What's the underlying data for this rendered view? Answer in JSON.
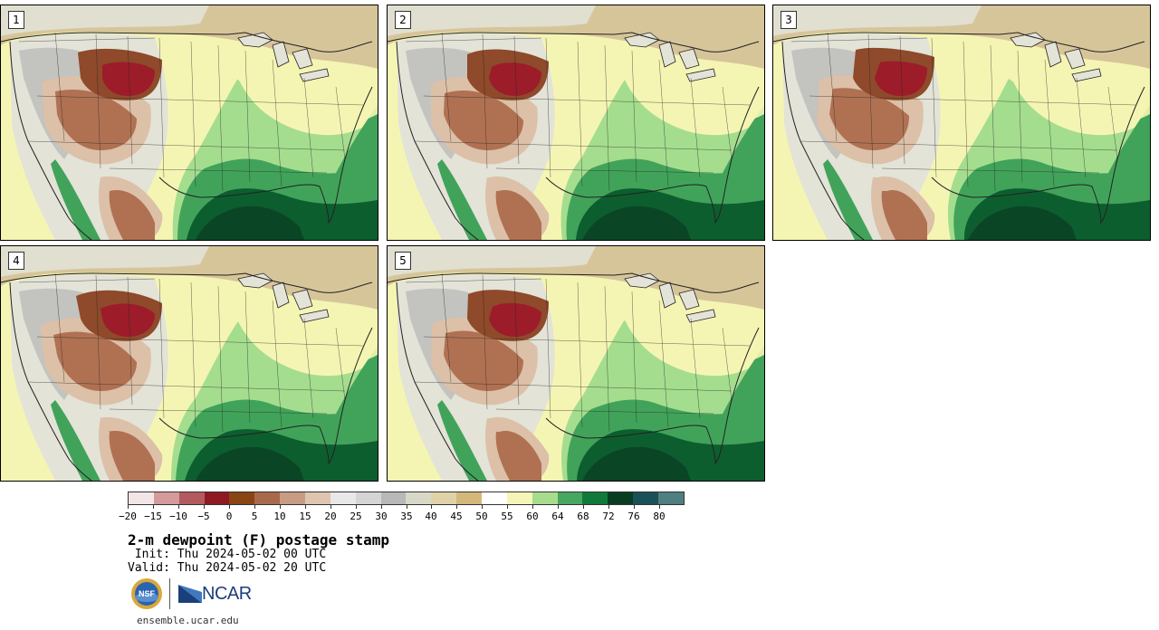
{
  "panels": [
    {
      "label": "1"
    },
    {
      "label": "2"
    },
    {
      "label": "3"
    },
    {
      "label": "4"
    },
    {
      "label": "5"
    }
  ],
  "map_colors": {
    "ocean_humid": "#0d5e2f",
    "gulf": "#0a4626",
    "moist": "#41a35a",
    "moderate": "#a5dd8f",
    "dry_plains": "#f5f5b3",
    "neutral": "#e3e3d8",
    "mountain_gray": "#b8b8b8",
    "brown_light": "#dcc0a8",
    "brown": "#b07152",
    "brown_dark": "#8e4a2a",
    "very_dry": "#9c1c2a",
    "canada_tan": "#d7c59a",
    "border": "#222222"
  },
  "colorbar": {
    "colors": [
      "#f2e6e6",
      "#d49a9c",
      "#b35a5e",
      "#8e1923",
      "#8b4513",
      "#a86a4a",
      "#c79c82",
      "#e0c4b0",
      "#e8e8e8",
      "#d5d5d5",
      "#b8b8b8",
      "#d8d8c8",
      "#e0d2a8",
      "#d4b87a",
      "#ffffff",
      "#f5f5b5",
      "#a7dc8f",
      "#47a660",
      "#107a3a",
      "#083d22",
      "#1a5058",
      "#4f7f80"
    ],
    "tick_labels": [
      "−20",
      "−15",
      "−10",
      "−5",
      "0",
      "5",
      "10",
      "15",
      "20",
      "25",
      "30",
      "35",
      "40",
      "45",
      "50",
      "55",
      "60",
      "64",
      "68",
      "72",
      "76",
      "80"
    ]
  },
  "title": "2-m dewpoint (F) postage stamp",
  "init_line": " Init: Thu 2024-05-02 00 UTC",
  "valid_line": "Valid: Thu 2024-05-02 20 UTC",
  "logos": {
    "nsf": "NSF",
    "ncar": "NCAR"
  },
  "site": "ensemble.ucar.edu"
}
